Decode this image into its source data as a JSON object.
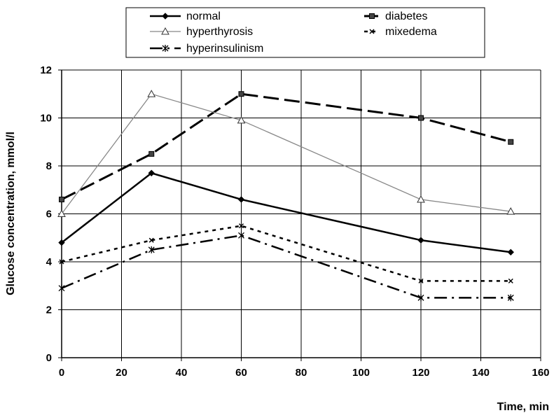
{
  "chart_data": {
    "type": "line",
    "title": "",
    "xlabel": "Time, min",
    "ylabel": "Glucose concentration, mmol/l",
    "xlim": [
      0,
      160
    ],
    "ylim": [
      0,
      12
    ],
    "xticks": [
      0,
      20,
      40,
      60,
      80,
      100,
      120,
      140,
      160
    ],
    "yticks": [
      0,
      2,
      4,
      6,
      8,
      10,
      12
    ],
    "grid": true,
    "legend_position": "top",
    "x": [
      0,
      30,
      60,
      120,
      150
    ],
    "series": [
      {
        "name": "normal",
        "values": [
          4.8,
          7.7,
          6.6,
          4.9,
          4.4
        ],
        "color": "#000000",
        "marker": "diamond",
        "dash": "solid"
      },
      {
        "name": "diabetes",
        "values": [
          6.6,
          8.5,
          11.0,
          10.0,
          9.0
        ],
        "color": "#000000",
        "marker": "square",
        "dash": "longdash"
      },
      {
        "name": "hyperthyrosis",
        "values": [
          6.0,
          11.0,
          9.9,
          6.6,
          6.1
        ],
        "color": "#888888",
        "marker": "triangle",
        "dash": "solid"
      },
      {
        "name": "mixedema",
        "values": [
          4.0,
          4.9,
          5.5,
          3.2,
          3.2
        ],
        "color": "#000000",
        "marker": "x",
        "dash": "dotted"
      },
      {
        "name": "hyperinsulinism",
        "values": [
          2.9,
          4.5,
          5.1,
          2.5,
          2.5
        ],
        "color": "#000000",
        "marker": "star",
        "dash": "dashdot"
      }
    ]
  }
}
